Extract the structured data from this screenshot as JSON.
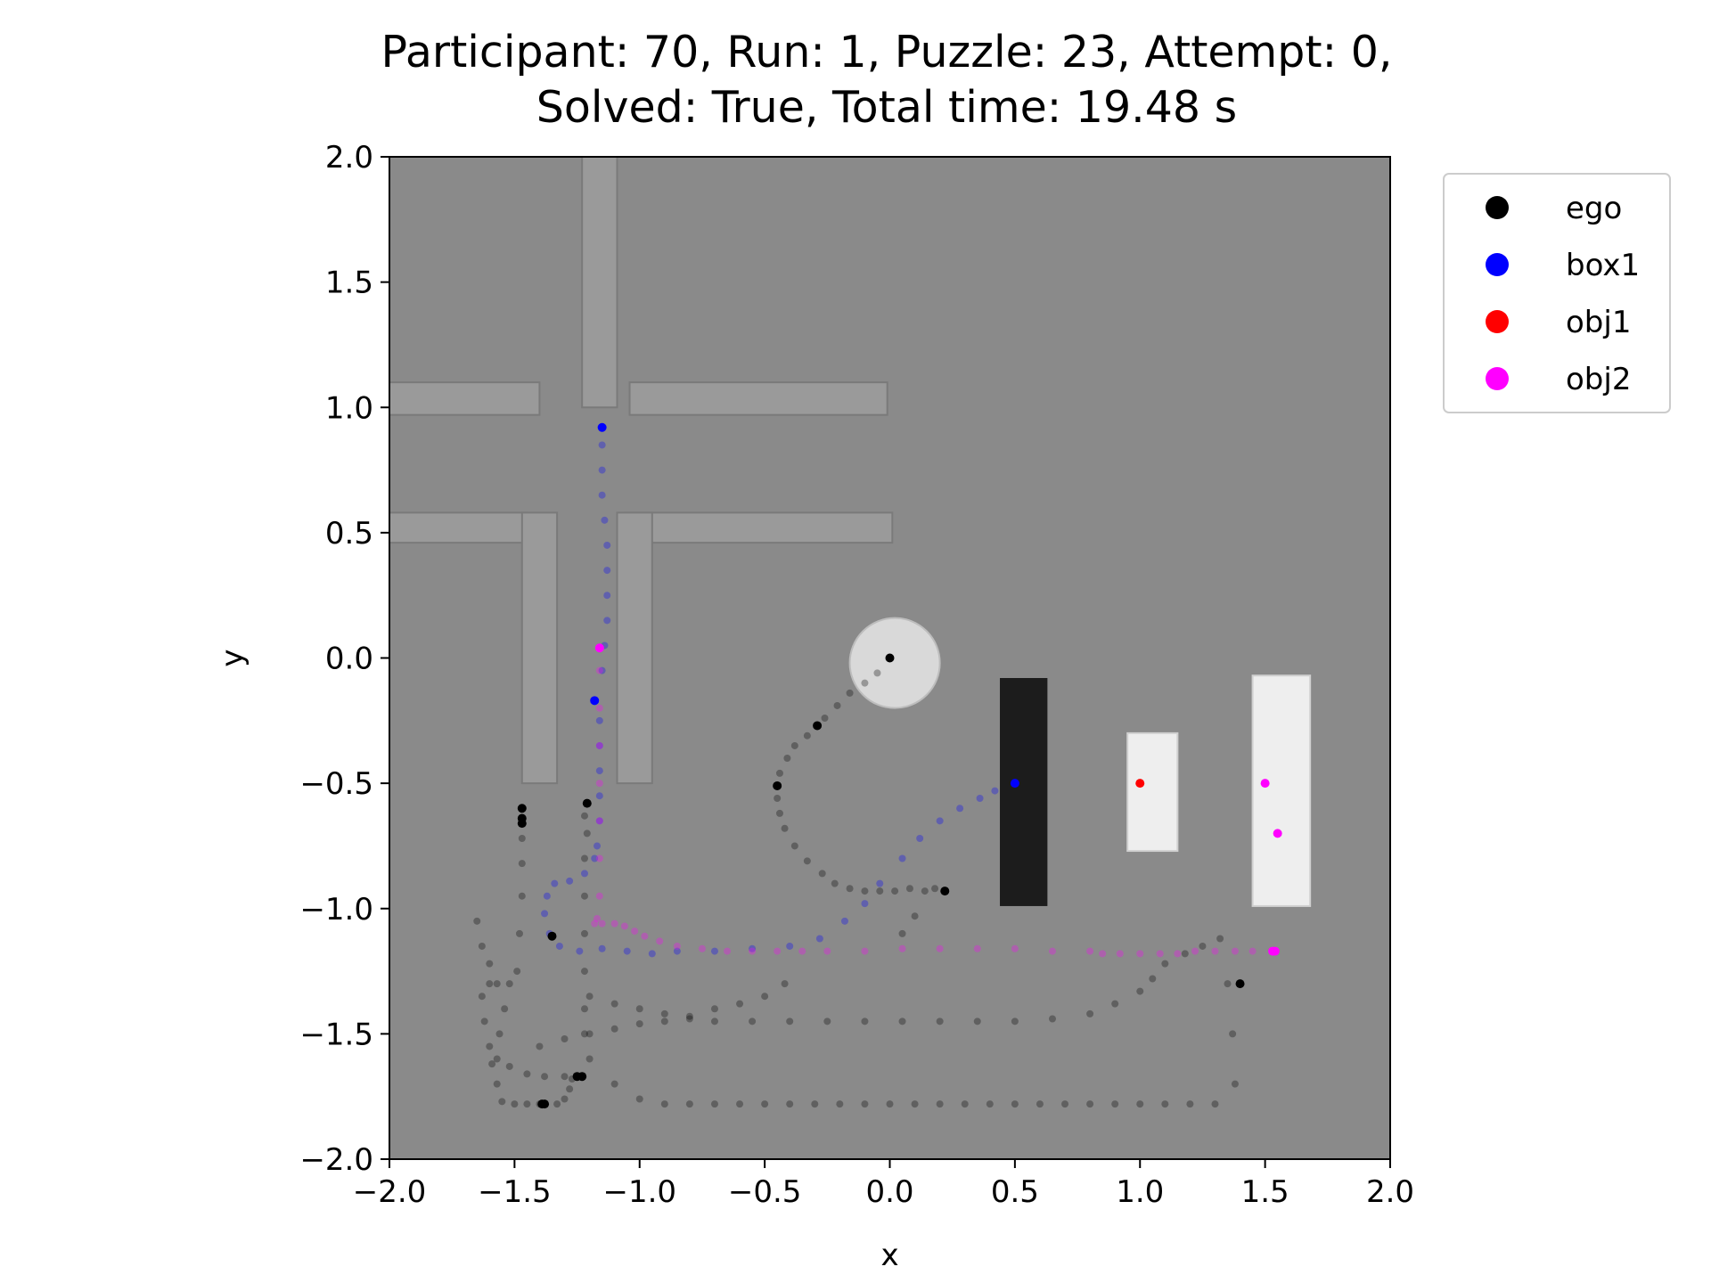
{
  "chart_data": {
    "type": "scatter",
    "title_line1": "Participant: 70, Run: 1, Puzzle: 23, Attempt: 0,",
    "title_line2": "Solved: True, Total time: 19.48 s",
    "xlabel": "x",
    "ylabel": "y",
    "xlim": [
      -2.0,
      2.0
    ],
    "ylim": [
      -2.0,
      2.0
    ],
    "xticks": [
      "−2.0",
      "−1.5",
      "−1.0",
      "−0.5",
      "0.0",
      "0.5",
      "1.0",
      "1.5",
      "2.0"
    ],
    "yticks": [
      "−2.0",
      "−1.5",
      "−1.0",
      "−0.5",
      "0.0",
      "0.5",
      "1.0",
      "1.5",
      "2.0"
    ],
    "xtick_values": [
      -2.0,
      -1.5,
      -1.0,
      -0.5,
      0.0,
      0.5,
      1.0,
      1.5,
      2.0
    ],
    "ytick_values": [
      -2.0,
      -1.5,
      -1.0,
      -0.5,
      0.0,
      0.5,
      1.0,
      1.5,
      2.0
    ],
    "grid": false,
    "legend_placement": "outside-top-right",
    "legend": [
      {
        "name": "ego",
        "color": "#000000"
      },
      {
        "name": "box1",
        "color": "#0000ff"
      },
      {
        "name": "obj1",
        "color": "#ff0000"
      },
      {
        "name": "obj2",
        "color": "#ff00ff"
      }
    ],
    "background_scene": {
      "floor_color": "#8a8a8a",
      "walls_color": "#9a9a9a",
      "ego_start_disc": {
        "x": 0.02,
        "y": -0.02,
        "r": 0.18,
        "color": "#d9d9d9"
      },
      "black_block": {
        "x0": 0.44,
        "x1": 0.63,
        "y0": -0.99,
        "y1": -0.08,
        "color": "#1c1c1c"
      },
      "white_blocks": [
        {
          "x0": 0.95,
          "x1": 1.15,
          "y0": -0.77,
          "y1": -0.3,
          "color": "#eeeeee"
        },
        {
          "x0": 1.45,
          "x1": 1.68,
          "y0": -0.99,
          "y1": -0.07,
          "color": "#eeeeee"
        }
      ]
    },
    "series": [
      {
        "name": "ego",
        "color": "#000000",
        "markers": [
          [
            0.0,
            0.0
          ],
          [
            -0.29,
            -0.27
          ],
          [
            -0.45,
            -0.51
          ],
          [
            0.22,
            -0.93
          ],
          [
            -1.21,
            -0.58
          ],
          [
            -1.47,
            -0.6
          ],
          [
            -1.47,
            -0.64
          ],
          [
            -1.47,
            -0.66
          ],
          [
            -1.35,
            -1.11
          ],
          [
            -1.23,
            -1.67
          ],
          [
            -1.25,
            -1.67
          ],
          [
            -1.39,
            -1.78
          ],
          [
            -1.38,
            -1.78
          ],
          [
            1.4,
            -1.3
          ]
        ],
        "points": [
          [
            -0.05,
            -0.06
          ],
          [
            -0.1,
            -0.1
          ],
          [
            -0.16,
            -0.14
          ],
          [
            -0.21,
            -0.19
          ],
          [
            -0.26,
            -0.24
          ],
          [
            -0.33,
            -0.31
          ],
          [
            -0.38,
            -0.35
          ],
          [
            -0.41,
            -0.4
          ],
          [
            -0.44,
            -0.46
          ],
          [
            -0.45,
            -0.56
          ],
          [
            -0.44,
            -0.62
          ],
          [
            -0.42,
            -0.68
          ],
          [
            -0.38,
            -0.75
          ],
          [
            -0.33,
            -0.81
          ],
          [
            -0.27,
            -0.86
          ],
          [
            -0.22,
            -0.9
          ],
          [
            -0.16,
            -0.92
          ],
          [
            -0.1,
            -0.93
          ],
          [
            -0.04,
            -0.93
          ],
          [
            0.02,
            -0.93
          ],
          [
            0.08,
            -0.92
          ],
          [
            0.14,
            -0.93
          ],
          [
            0.18,
            -0.92
          ],
          [
            0.1,
            -1.03
          ],
          [
            0.05,
            -1.1
          ],
          [
            -1.22,
            -0.63
          ],
          [
            -1.21,
            -0.7
          ],
          [
            -1.22,
            -0.8
          ],
          [
            -1.22,
            -0.95
          ],
          [
            -1.22,
            -1.1
          ],
          [
            -1.22,
            -1.25
          ],
          [
            -1.22,
            -1.4
          ],
          [
            -1.22,
            -1.5
          ],
          [
            -1.47,
            -0.72
          ],
          [
            -1.47,
            -0.82
          ],
          [
            -1.47,
            -0.95
          ],
          [
            -1.48,
            -1.1
          ],
          [
            -1.49,
            -1.25
          ],
          [
            -1.52,
            -1.3
          ],
          [
            -1.6,
            -1.3
          ],
          [
            -1.63,
            -1.35
          ],
          [
            -1.62,
            -1.45
          ],
          [
            -1.6,
            -1.55
          ],
          [
            -1.57,
            -1.6
          ],
          [
            -1.52,
            -1.63
          ],
          [
            -1.45,
            -1.66
          ],
          [
            -1.38,
            -1.67
          ],
          [
            -1.3,
            -1.67
          ],
          [
            -1.27,
            -1.68
          ],
          [
            -1.28,
            -1.72
          ],
          [
            -1.3,
            -1.76
          ],
          [
            -1.33,
            -1.78
          ],
          [
            -1.4,
            -1.78
          ],
          [
            -1.45,
            -1.78
          ],
          [
            -1.5,
            -1.78
          ],
          [
            -1.55,
            -1.77
          ],
          [
            -1.57,
            -1.7
          ],
          [
            -1.59,
            -1.62
          ],
          [
            -1.56,
            -1.5
          ],
          [
            -1.54,
            -1.4
          ],
          [
            -1.57,
            -1.3
          ],
          [
            -1.6,
            -1.22
          ],
          [
            -1.63,
            -1.15
          ],
          [
            -1.65,
            -1.05
          ],
          [
            -1.2,
            -1.6
          ],
          [
            -1.1,
            -1.7
          ],
          [
            -1.0,
            -1.76
          ],
          [
            -0.9,
            -1.78
          ],
          [
            -0.8,
            -1.78
          ],
          [
            -0.7,
            -1.78
          ],
          [
            -0.6,
            -1.78
          ],
          [
            -0.5,
            -1.78
          ],
          [
            -0.4,
            -1.78
          ],
          [
            -0.3,
            -1.78
          ],
          [
            -0.2,
            -1.78
          ],
          [
            -0.1,
            -1.78
          ],
          [
            0.0,
            -1.78
          ],
          [
            0.1,
            -1.78
          ],
          [
            0.2,
            -1.78
          ],
          [
            0.3,
            -1.78
          ],
          [
            0.4,
            -1.78
          ],
          [
            0.5,
            -1.78
          ],
          [
            0.6,
            -1.78
          ],
          [
            0.7,
            -1.78
          ],
          [
            0.8,
            -1.78
          ],
          [
            0.9,
            -1.78
          ],
          [
            1.0,
            -1.78
          ],
          [
            1.1,
            -1.78
          ],
          [
            1.2,
            -1.78
          ],
          [
            1.3,
            -1.78
          ],
          [
            -1.4,
            -1.55
          ],
          [
            -1.3,
            -1.52
          ],
          [
            -1.2,
            -1.5
          ],
          [
            -1.1,
            -1.48
          ],
          [
            -1.0,
            -1.46
          ],
          [
            -0.9,
            -1.45
          ],
          [
            -0.8,
            -1.43
          ],
          [
            -0.7,
            -1.4
          ],
          [
            -0.6,
            -1.38
          ],
          [
            -0.5,
            -1.35
          ],
          [
            -0.42,
            -1.3
          ],
          [
            -1.2,
            -1.35
          ],
          [
            -1.1,
            -1.38
          ],
          [
            -1.0,
            -1.4
          ],
          [
            -0.9,
            -1.42
          ],
          [
            -0.8,
            -1.44
          ],
          [
            -0.7,
            -1.45
          ],
          [
            -0.55,
            -1.45
          ],
          [
            -0.4,
            -1.45
          ],
          [
            -0.25,
            -1.45
          ],
          [
            -0.1,
            -1.45
          ],
          [
            0.05,
            -1.45
          ],
          [
            0.2,
            -1.45
          ],
          [
            0.35,
            -1.45
          ],
          [
            0.5,
            -1.45
          ],
          [
            0.65,
            -1.44
          ],
          [
            0.8,
            -1.42
          ],
          [
            0.9,
            -1.38
          ],
          [
            1.0,
            -1.33
          ],
          [
            1.05,
            -1.28
          ],
          [
            1.1,
            -1.22
          ],
          [
            1.18,
            -1.18
          ],
          [
            1.25,
            -1.15
          ],
          [
            1.32,
            -1.12
          ],
          [
            1.35,
            -1.3
          ],
          [
            1.37,
            -1.5
          ],
          [
            1.38,
            -1.7
          ]
        ]
      },
      {
        "name": "box1",
        "color": "#0000ff",
        "markers": [
          [
            -1.15,
            0.92
          ],
          [
            -1.18,
            -0.17
          ],
          [
            0.5,
            -0.5
          ]
        ],
        "points": [
          [
            -1.15,
            0.85
          ],
          [
            -1.15,
            0.75
          ],
          [
            -1.15,
            0.65
          ],
          [
            -1.14,
            0.55
          ],
          [
            -1.13,
            0.45
          ],
          [
            -1.13,
            0.35
          ],
          [
            -1.13,
            0.25
          ],
          [
            -1.13,
            0.15
          ],
          [
            -1.14,
            0.05
          ],
          [
            -1.15,
            -0.05
          ],
          [
            -1.16,
            -0.25
          ],
          [
            -1.16,
            -0.35
          ],
          [
            -1.16,
            -0.45
          ],
          [
            -1.16,
            -0.55
          ],
          [
            -1.16,
            -0.65
          ],
          [
            -1.17,
            -0.75
          ],
          [
            -1.18,
            -0.8
          ],
          [
            -1.22,
            -0.86
          ],
          [
            -1.28,
            -0.89
          ],
          [
            -1.34,
            -0.9
          ],
          [
            -1.37,
            -0.95
          ],
          [
            -1.38,
            -1.02
          ],
          [
            -1.36,
            -1.1
          ],
          [
            -1.32,
            -1.15
          ],
          [
            -1.24,
            -1.17
          ],
          [
            -1.15,
            -1.16
          ],
          [
            -1.05,
            -1.17
          ],
          [
            -0.95,
            -1.18
          ],
          [
            -0.85,
            -1.17
          ],
          [
            -0.7,
            -1.17
          ],
          [
            -0.55,
            -1.16
          ],
          [
            -0.4,
            -1.15
          ],
          [
            -0.28,
            -1.12
          ],
          [
            -0.18,
            -1.05
          ],
          [
            -0.1,
            -0.98
          ],
          [
            -0.04,
            -0.9
          ],
          [
            0.05,
            -0.8
          ],
          [
            0.12,
            -0.72
          ],
          [
            0.2,
            -0.65
          ],
          [
            0.28,
            -0.6
          ],
          [
            0.36,
            -0.56
          ],
          [
            0.42,
            -0.53
          ]
        ]
      },
      {
        "name": "obj1",
        "color": "#ff0000",
        "markers": [
          [
            1.0,
            -0.5
          ]
        ],
        "points": []
      },
      {
        "name": "obj2",
        "color": "#ff00ff",
        "markers": [
          [
            -1.16,
            0.04
          ],
          [
            1.5,
            -0.5
          ],
          [
            1.55,
            -0.7
          ],
          [
            1.54,
            -1.17
          ],
          [
            1.53,
            -1.17
          ]
        ],
        "points": [
          [
            -1.16,
            -0.05
          ],
          [
            -1.16,
            -0.2
          ],
          [
            -1.16,
            -0.35
          ],
          [
            -1.16,
            -0.5
          ],
          [
            -1.16,
            -0.65
          ],
          [
            -1.16,
            -0.8
          ],
          [
            -1.16,
            -0.95
          ],
          [
            -1.17,
            -1.04
          ],
          [
            -1.18,
            -1.06
          ],
          [
            -1.15,
            -1.06
          ],
          [
            -1.1,
            -1.06
          ],
          [
            -1.06,
            -1.07
          ],
          [
            -1.02,
            -1.09
          ],
          [
            -0.98,
            -1.11
          ],
          [
            -0.92,
            -1.13
          ],
          [
            -0.85,
            -1.15
          ],
          [
            -0.75,
            -1.16
          ],
          [
            -0.65,
            -1.17
          ],
          [
            -0.55,
            -1.17
          ],
          [
            -0.45,
            -1.17
          ],
          [
            -0.35,
            -1.17
          ],
          [
            -0.25,
            -1.17
          ],
          [
            -0.1,
            -1.17
          ],
          [
            0.05,
            -1.16
          ],
          [
            0.2,
            -1.16
          ],
          [
            0.35,
            -1.16
          ],
          [
            0.5,
            -1.16
          ],
          [
            0.65,
            -1.17
          ],
          [
            0.8,
            -1.17
          ],
          [
            0.85,
            -1.18
          ],
          [
            0.92,
            -1.18
          ],
          [
            1.0,
            -1.18
          ],
          [
            1.08,
            -1.18
          ],
          [
            1.15,
            -1.18
          ],
          [
            1.22,
            -1.17
          ],
          [
            1.3,
            -1.17
          ],
          [
            1.38,
            -1.17
          ],
          [
            1.45,
            -1.17
          ]
        ]
      }
    ]
  }
}
